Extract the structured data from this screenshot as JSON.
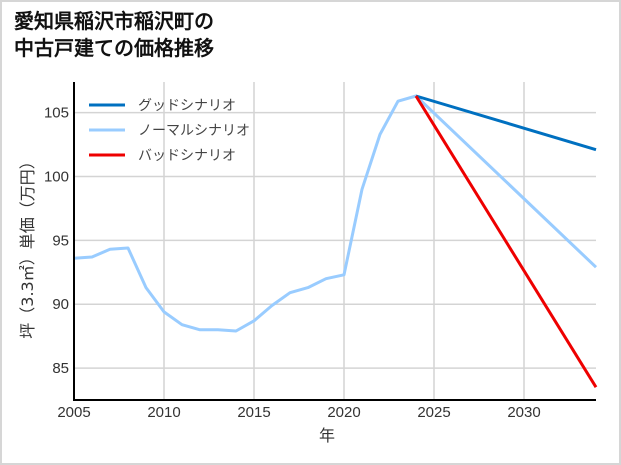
{
  "title": {
    "line1": "愛知県稲沢市稲沢町の",
    "line2": "中古戸建ての価格推移"
  },
  "colors": {
    "good": "#0070c0",
    "normal": "#99ccff",
    "bad": "#ee0000",
    "grid": "#d4d4d4",
    "axis": "#000000"
  },
  "chart_data": {
    "type": "line",
    "title": "愛知県稲沢市稲沢町の中古戸建ての価格推移",
    "xlabel": "年",
    "ylabel": "坪（3.3㎡）単価（万円）",
    "xlim": [
      2005,
      2034
    ],
    "ylim": [
      82.5,
      107.4
    ],
    "xticks": [
      2005,
      2010,
      2015,
      2020,
      2025,
      2030
    ],
    "yticks": [
      85,
      90,
      95,
      100,
      105
    ],
    "grid": true,
    "legend_position": "upper left",
    "legend": [
      "グッドシナリオ",
      "ノーマルシナリオ",
      "バッドシナリオ"
    ],
    "series": [
      {
        "name": "ノーマルシナリオ",
        "color": "#99ccff",
        "x": [
          2005,
          2006,
          2007,
          2008,
          2009,
          2010,
          2011,
          2012,
          2013,
          2014,
          2015,
          2016,
          2017,
          2018,
          2019,
          2020,
          2021,
          2022,
          2023,
          2024,
          2034
        ],
        "values": [
          93.6,
          93.7,
          94.3,
          94.4,
          91.3,
          89.4,
          88.4,
          88.0,
          88.0,
          87.9,
          88.7,
          89.9,
          90.9,
          91.3,
          92.0,
          92.3,
          99.0,
          103.3,
          105.9,
          106.3,
          92.9
        ]
      },
      {
        "name": "グッドシナリオ",
        "color": "#0070c0",
        "x": [
          2024,
          2034
        ],
        "values": [
          106.3,
          102.1
        ]
      },
      {
        "name": "バッドシナリオ",
        "color": "#ee0000",
        "x": [
          2024,
          2034
        ],
        "values": [
          106.3,
          83.5
        ]
      }
    ]
  }
}
